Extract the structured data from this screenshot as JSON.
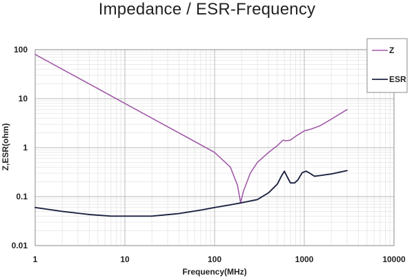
{
  "chart_data": {
    "type": "line",
    "title": "Impedance / ESR-Frequency",
    "xlabel": "Frequency(MHz)",
    "ylabel": "Z,ESR(ohm)",
    "xscale": "log",
    "yscale": "log",
    "xlim": [
      1,
      10000
    ],
    "ylim": [
      0.01,
      100
    ],
    "x_ticks": [
      1,
      10,
      100,
      1000,
      10000
    ],
    "x_tick_labels": [
      "1",
      "10",
      "100",
      "1000",
      "10000"
    ],
    "y_ticks": [
      0.01,
      0.1,
      1,
      10,
      100
    ],
    "y_tick_labels": [
      "0.01",
      "0.1",
      "1",
      "10",
      "100"
    ],
    "grid": true,
    "legend_position": "right",
    "series": [
      {
        "name": "Z",
        "color": "#a05aa8",
        "points": [
          [
            1,
            80
          ],
          [
            2,
            40
          ],
          [
            5,
            16
          ],
          [
            10,
            8
          ],
          [
            20,
            4
          ],
          [
            50,
            1.6
          ],
          [
            100,
            0.8
          ],
          [
            150,
            0.4
          ],
          [
            180,
            0.17
          ],
          [
            195,
            0.075
          ],
          [
            210,
            0.13
          ],
          [
            250,
            0.3
          ],
          [
            300,
            0.5
          ],
          [
            400,
            0.8
          ],
          [
            500,
            1.1
          ],
          [
            580,
            1.42
          ],
          [
            620,
            1.38
          ],
          [
            700,
            1.42
          ],
          [
            800,
            1.7
          ],
          [
            1000,
            2.2
          ],
          [
            1200,
            2.4
          ],
          [
            1500,
            2.8
          ],
          [
            2000,
            3.8
          ],
          [
            3000,
            6
          ]
        ]
      },
      {
        "name": "ESR",
        "color": "#1c2240",
        "points": [
          [
            1,
            0.06
          ],
          [
            2,
            0.05
          ],
          [
            4,
            0.043
          ],
          [
            7,
            0.04
          ],
          [
            10,
            0.04
          ],
          [
            20,
            0.04
          ],
          [
            40,
            0.045
          ],
          [
            70,
            0.053
          ],
          [
            100,
            0.06
          ],
          [
            150,
            0.068
          ],
          [
            200,
            0.075
          ],
          [
            300,
            0.087
          ],
          [
            400,
            0.12
          ],
          [
            500,
            0.18
          ],
          [
            560,
            0.27
          ],
          [
            600,
            0.33
          ],
          [
            640,
            0.26
          ],
          [
            700,
            0.19
          ],
          [
            780,
            0.19
          ],
          [
            850,
            0.22
          ],
          [
            950,
            0.31
          ],
          [
            1050,
            0.33
          ],
          [
            1150,
            0.3
          ],
          [
            1300,
            0.26
          ],
          [
            1500,
            0.27
          ],
          [
            2000,
            0.29
          ],
          [
            3000,
            0.34
          ]
        ]
      }
    ]
  }
}
